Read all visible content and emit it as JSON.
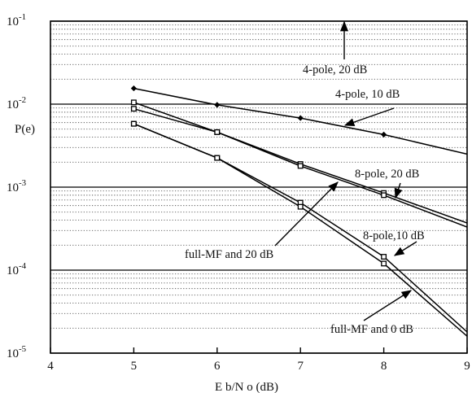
{
  "chart_data": {
    "type": "line",
    "title": "",
    "xlabel": "E b/N o (dB)",
    "ylabel": "P(e)",
    "x_scale": "linear",
    "y_scale": "log",
    "xlim": [
      4,
      9
    ],
    "ylim": [
      1e-05,
      0.1
    ],
    "x_ticks": [
      4,
      5,
      6,
      7,
      8,
      9
    ],
    "y_ticks": [
      {
        "value": 1e-05,
        "base": "10",
        "exp": "-5"
      },
      {
        "value": 0.0001,
        "base": "10",
        "exp": "-4"
      },
      {
        "value": 0.001,
        "base": "10",
        "exp": "-3"
      },
      {
        "value": 0.01,
        "base": "10",
        "exp": "-2"
      },
      {
        "value": 0.1,
        "base": "10",
        "exp": "-1"
      }
    ],
    "grid": "dotted minor horizontal lines; solid lines at decades",
    "legend": "none (inline annotations with arrows)",
    "series": [
      {
        "x": [
          5,
          6,
          7,
          8,
          9
        ],
        "y": [
          0.0155,
          0.0098,
          0.0068,
          0.0043,
          0.0025
        ],
        "marker": "diamond"
      },
      {
        "x": [
          5,
          6,
          7,
          8,
          9
        ],
        "y": [
          0.0088,
          0.0046,
          0.0019,
          0.00085,
          0.00037
        ],
        "marker": "square"
      },
      {
        "x": [
          5,
          6,
          7,
          8,
          9
        ],
        "y": [
          0.0105,
          0.0046,
          0.0018,
          0.0008,
          0.00033
        ],
        "marker": "square"
      },
      {
        "x": [
          5,
          6,
          7,
          8,
          9
        ],
        "y": [
          0.0058,
          0.00225,
          0.00065,
          0.000145,
          1.8e-05
        ],
        "marker": "square"
      },
      {
        "x": [
          5,
          6,
          7,
          8,
          9
        ],
        "y": [
          0.0058,
          0.00225,
          0.00058,
          0.00012,
          1.6e-05
        ],
        "marker": "square"
      }
    ],
    "annotations": [
      {
        "text": "4-pole, 20 dB"
      },
      {
        "text": "4-pole, 10 dB"
      },
      {
        "text": "8-pole, 20 dB"
      },
      {
        "text": "full-MF and 20 dB"
      },
      {
        "text": "8-pole,10 dB"
      },
      {
        "text": "full-MF and 0 dB"
      }
    ]
  }
}
